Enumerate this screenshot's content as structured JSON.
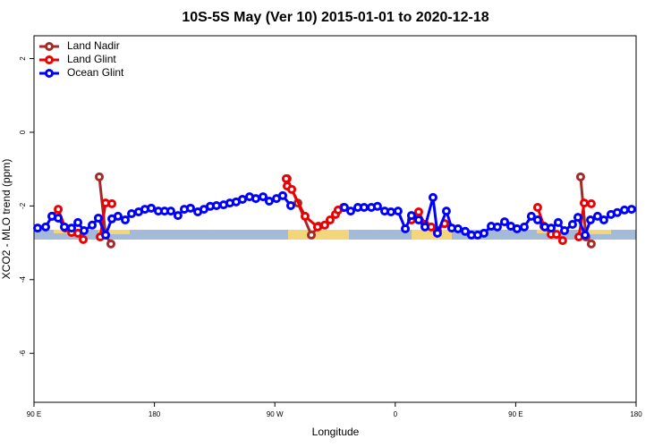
{
  "chart_data": {
    "type": "line",
    "title": "10S-5S May (Ver 10)   2015-01-01 to 2020-12-18",
    "x_label": "Longitude",
    "y_label": "XCO2 - MLO trend (ppm)",
    "xlim": [
      90,
      540
    ],
    "xticks": [
      {
        "value": 90,
        "label": "90 E"
      },
      180,
      {
        "value": 270,
        "label": "90 W"
      },
      {
        "value": 360,
        "label": "0"
      },
      {
        "value": 450,
        "label": "90 E"
      },
      {
        "value": 540,
        "label": "180"
      }
    ],
    "ylim": [
      -7.33,
      2.62
    ],
    "yticks": [
      2,
      0,
      -2,
      -4,
      -6
    ],
    "legend": "top-left",
    "series": [
      {
        "name": "Land Nadir",
        "color": "#a52a2a",
        "x": [
          138.8,
          143.5,
          147.5,
          null,
          279.2,
          287.2,
          297.3,
          302.6,
          null,
          498.5,
          502.5,
          506.5
        ],
        "values": [
          -1.21,
          -2.79,
          -3.03,
          null,
          -1.26,
          -1.92,
          -2.79,
          -2.55,
          null,
          -1.21,
          -2.84,
          -3.03
        ]
      },
      {
        "name": "Land Glint",
        "color": "#ee0000",
        "x": [
          103.4,
          108.1,
          113.4,
          118.1,
          122.8,
          126.8,
          null,
          139.5,
          143.5,
          148.2,
          null,
          278.5,
          279.2,
          282.6,
          292.6,
          301.9,
          307.3,
          311.3,
          315.3,
          317.3,
          321.3,
          null,
          372.1,
          376.2,
          377.5,
          382.2,
          386.9,
          391.5,
          396.9,
          null,
          466.4,
          471.1,
          476.5,
          480.5,
          485.1,
          null,
          497.2,
          501.2,
          506.5
        ],
        "values": [
          -2.28,
          -2.09,
          -2.6,
          -2.72,
          -2.74,
          -2.91,
          null,
          -2.84,
          -1.92,
          -1.94,
          null,
          -1.26,
          -1.46,
          -1.55,
          -2.28,
          -2.57,
          -2.52,
          -2.38,
          -2.23,
          -2.11,
          -2.04,
          null,
          -2.38,
          -2.33,
          -2.16,
          -2.5,
          -2.57,
          -2.67,
          -2.48,
          null,
          -2.04,
          -2.55,
          -2.77,
          -2.77,
          -2.94,
          null,
          -2.84,
          -1.92,
          -1.94
        ]
      },
      {
        "name": "Ocean Glint",
        "color": "#0000ff",
        "x": [
          92.7,
          98.7,
          103.4,
          108.1,
          112.7,
          118.1,
          122.8,
          127.4,
          133.5,
          138.1,
          143.5,
          148.2,
          152.8,
          158.2,
          162.9,
          168.2,
          172.9,
          177.6,
          182.9,
          187.6,
          192.3,
          197.6,
          202.3,
          207,
          212.4,
          217,
          221.7,
          226.4,
          231.7,
          236.4,
          241.1,
          245.8,
          251.1,
          255.8,
          261.2,
          265.8,
          271.2,
          275.9,
          281.9,
          null,
          322,
          326.7,
          332,
          336.7,
          342.1,
          346.7,
          352.1,
          356.8,
          362.1,
          367.5,
          372.1,
          377.5,
          382.2,
          388.2,
          391.5,
          398.2,
          402.2,
          406.9,
          412.3,
          416.9,
          421.6,
          426.3,
          431.7,
          436.3,
          441.7,
          446.4,
          451,
          456.4,
          461.7,
          466.4,
          471.8,
          476.5,
          481.8,
          486.5,
          492.5,
          496.5,
          501.9,
          505.9,
          511.2,
          515.9,
          521.2,
          525.9,
          531.3,
          536.6
        ],
        "values": [
          -2.6,
          -2.57,
          -2.28,
          -2.33,
          -2.57,
          -2.6,
          -2.45,
          -2.67,
          -2.52,
          -2.33,
          -2.79,
          -2.35,
          -2.28,
          -2.38,
          -2.21,
          -2.16,
          -2.09,
          -2.06,
          -2.14,
          -2.14,
          -2.14,
          -2.26,
          -2.09,
          -2.06,
          -2.16,
          -2.09,
          -2.01,
          -1.99,
          -1.97,
          -1.92,
          -1.89,
          -1.82,
          -1.75,
          -1.8,
          -1.75,
          -1.87,
          -1.8,
          -1.72,
          -1.99,
          null,
          -2.04,
          -2.14,
          -2.04,
          -2.04,
          -2.04,
          -2.01,
          -2.14,
          -2.16,
          -2.14,
          -2.62,
          -2.26,
          -2.38,
          -2.57,
          -1.77,
          -2.74,
          -2.14,
          -2.6,
          -2.62,
          -2.69,
          -2.79,
          -2.79,
          -2.74,
          -2.55,
          -2.57,
          -2.43,
          -2.55,
          -2.62,
          -2.57,
          -2.28,
          -2.38,
          -2.57,
          -2.6,
          -2.45,
          -2.67,
          -2.5,
          -2.31,
          -2.79,
          -2.38,
          -2.28,
          -2.38,
          -2.23,
          -2.18,
          -2.11,
          -2.09
        ]
      }
    ]
  }
}
